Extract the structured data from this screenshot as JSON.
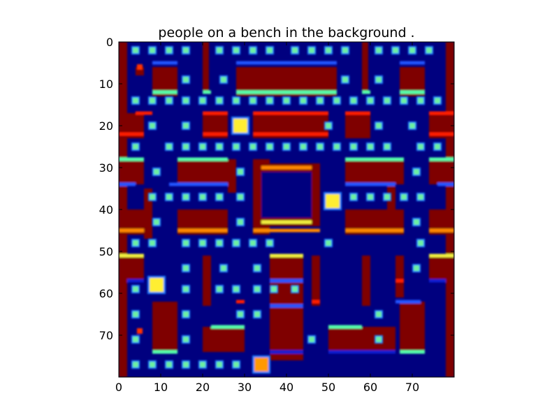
{
  "chart_data": {
    "type": "heatmap",
    "title": "people on a bench in the background .",
    "xlabel": "",
    "ylabel": "",
    "xlim": [
      0,
      80
    ],
    "ylim": [
      80,
      0
    ],
    "xticks": [
      0,
      10,
      20,
      30,
      40,
      50,
      60,
      70
    ],
    "yticks": [
      0,
      10,
      20,
      30,
      40,
      50,
      60,
      70
    ],
    "colormap": "jet",
    "grid": false,
    "colors": {
      "background": "#00007f",
      "wall": "#7f0000",
      "wall_inner": "#7a0000",
      "edge_red": "#ff1a00",
      "edge_cyan": "#55ffaa",
      "edge_blue": "#2255ff",
      "edge_orange": "#ff8800",
      "edge_yellow": "#f0f040",
      "dot": "#6df0a0",
      "dot_halo": "#1f7fff",
      "mid_blue": "#0a1fd0"
    },
    "sprites": [
      {
        "name": "pacman",
        "x": 51,
        "y": 38,
        "color": "#ffee33"
      },
      {
        "name": "ghost-a",
        "x": 29,
        "y": 20,
        "color": "#ffee33"
      },
      {
        "name": "ghost-b",
        "x": 9,
        "y": 58,
        "color": "#ffee33"
      },
      {
        "name": "ghost-c",
        "x": 34,
        "y": 77,
        "color": "#ff9900"
      }
    ]
  }
}
